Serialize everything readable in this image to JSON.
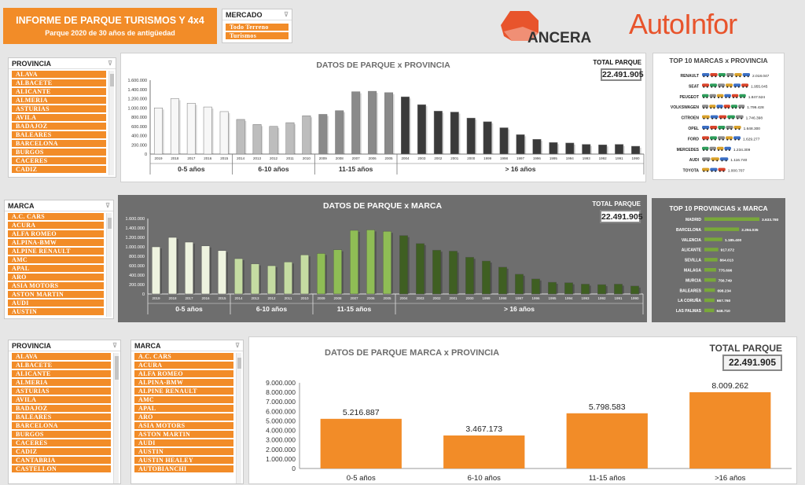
{
  "header": {
    "title": "INFORME DE PARQUE TURISMOS Y  4x4",
    "subtitle": "Parque 2020 de 30 años de antigüedad",
    "mercado_label": "MERCADO",
    "mercado_items": [
      "Todo Terreno",
      "Turismos"
    ],
    "logo_ancera": "ANCERA",
    "logo_auto": "AutoInfor"
  },
  "slicers": {
    "provincia_label": "PROVINCIA",
    "marca_label": "MARCA",
    "provincias": [
      "ALAVA",
      "ALBACETE",
      "ALICANTE",
      "ALMERIA",
      "ASTURIAS",
      "AVILA",
      "BADAJOZ",
      "BALEARES",
      "BARCELONA",
      "BURGOS",
      "CACERES",
      "CADIZ",
      "CANTABRIA",
      "CASTELLON"
    ],
    "marcas": [
      "A.C. CARS",
      "ACURA",
      "ALFA ROMEO",
      "ALPINA-BMW",
      "ALPINE RENAULT",
      "AMC",
      "APAL",
      "ARO",
      "ASIA MOTORS",
      "ASTON MARTIN",
      "AUDI",
      "AUSTIN",
      "AUSTIN HEALEY",
      "AUTOBIANCHI"
    ]
  },
  "panel1": {
    "title": "DATOS DE  PARQUE x PROVINCIA",
    "total_label": "TOTAL PARQUE",
    "total_value": "22.491.905"
  },
  "panel2": {
    "title": "DATOS DE  PARQUE x MARCA",
    "total_label": "TOTAL PARQUE",
    "total_value": "22.491.905"
  },
  "panel3": {
    "title": "DATOS DE  PARQUE MARCA x PROVINCIA",
    "total_label": "TOTAL PARQUE",
    "total_value": "22.491.905"
  },
  "top_marcas": {
    "title": "TOP 10 MARCAS x PROVINCIA",
    "names": [
      "RENAULT",
      "SEAT",
      "PEUGEOT",
      "VOLKSWAGEN",
      "CITROEN",
      "OPEL",
      "FORD",
      "MERCEDES",
      "AUDI",
      "TOYOTA"
    ],
    "labels": [
      "2.018.047",
      "1.955.045",
      "1.847.524",
      "1.799.428",
      "1.746.398",
      "1.648.300",
      "1.629.277",
      "1.234.309",
      "1.116.740",
      "1.000.707"
    ]
  },
  "top_provincias": {
    "title": "TOP 10 PROVINCIAS x MARCA",
    "names": [
      "MADRID",
      "BARCELONA",
      "VALENCIA",
      "ALICANTE",
      "SEVILLA",
      "MALAGA",
      "MURCIA",
      "BALEARES",
      "LA CORUÑA",
      "LAS PALMAS"
    ],
    "labels": [
      "3.633.780",
      "2.294.035",
      "1.185.400",
      "917.072",
      "864.013",
      "775.696",
      "756.749",
      "698.234",
      "667.760",
      "648.710"
    ]
  },
  "colors": {
    "orange": "#f28c28",
    "dark_panel": "#6e6e6e",
    "logo_red": "#e8542c"
  },
  "chart_data": [
    {
      "type": "bar",
      "title": "DATOS DE  PARQUE x PROVINCIA",
      "categories": [
        "2019",
        "2018",
        "2017",
        "2016",
        "2015",
        "2014",
        "2013",
        "2012",
        "2011",
        "2010",
        "2009",
        "2008",
        "2007",
        "2006",
        "2005",
        "2004",
        "2003",
        "2002",
        "2001",
        "2000",
        "1999",
        "1998",
        "1997",
        "1996",
        "1995",
        "1994",
        "1993",
        "1992",
        "1991",
        "1990"
      ],
      "groups": [
        "0-5 años",
        "6-10 años",
        "11-15 años",
        "> 16 años"
      ],
      "group_sizes": [
        5,
        5,
        5,
        15
      ],
      "values": [
        1000000,
        1200000,
        1100000,
        1020000,
        920000,
        750000,
        640000,
        600000,
        680000,
        830000,
        860000,
        940000,
        1350000,
        1360000,
        1330000,
        1240000,
        1070000,
        930000,
        910000,
        780000,
        700000,
        570000,
        420000,
        320000,
        250000,
        240000,
        210000,
        200000,
        210000,
        170000
      ],
      "ytick_labels": [
        "0",
        "200.000",
        "400.000",
        "600.000",
        "800.000",
        "1.000.000",
        "1.200.000",
        "1.400.000",
        "1.600.000"
      ],
      "ylim": [
        0,
        1600000
      ]
    },
    {
      "type": "bar",
      "title": "DATOS DE  PARQUE x MARCA",
      "categories": [
        "2019",
        "2018",
        "2017",
        "2016",
        "2015",
        "2014",
        "2013",
        "2012",
        "2011",
        "2010",
        "2009",
        "2008",
        "2007",
        "2006",
        "2005",
        "2004",
        "2003",
        "2002",
        "2001",
        "2000",
        "1999",
        "1998",
        "1997",
        "1996",
        "1995",
        "1994",
        "1993",
        "1992",
        "1991",
        "1990"
      ],
      "groups": [
        "0-5 años",
        "6-10 años",
        "11-15 años",
        "> 16 años"
      ],
      "group_sizes": [
        5,
        5,
        5,
        15
      ],
      "values": [
        1000000,
        1200000,
        1100000,
        1020000,
        920000,
        750000,
        640000,
        600000,
        680000,
        830000,
        860000,
        940000,
        1350000,
        1360000,
        1330000,
        1240000,
        1070000,
        930000,
        910000,
        780000,
        700000,
        570000,
        420000,
        320000,
        250000,
        240000,
        210000,
        200000,
        210000,
        170000
      ],
      "ytick_labels": [
        "0",
        "200.000",
        "400.000",
        "600.000",
        "800.000",
        "1.000.000",
        "1.200.000",
        "1.400.000",
        "1.600.000"
      ],
      "ylim": [
        0,
        1600000
      ]
    },
    {
      "type": "bar",
      "title": "DATOS DE  PARQUE MARCA x PROVINCIA",
      "categories": [
        "0-5 años",
        "6-10 años",
        "11-15 años",
        ">16 años"
      ],
      "values": [
        5216887,
        3467173,
        5798583,
        8009262
      ],
      "data_labels": [
        "5.216.887",
        "3.467.173",
        "5.798.583",
        "8.009.262"
      ],
      "ytick_labels": [
        "0",
        "1.000.000",
        "2.000.000",
        "3.000.000",
        "4.000.000",
        "5.000.000",
        "6.000.000",
        "7.000.000",
        "8.000.000",
        "9.000.000"
      ],
      "ylim": [
        0,
        9000000
      ]
    },
    {
      "type": "bar",
      "title": "TOP 10 MARCAS x PROVINCIA",
      "categories": [
        "RENAULT",
        "SEAT",
        "PEUGEOT",
        "VOLKSWAGEN",
        "CITROEN",
        "OPEL",
        "FORD",
        "MERCEDES",
        "AUDI",
        "TOYOTA"
      ],
      "values": [
        2018047,
        1955045,
        1847524,
        1799428,
        1746398,
        1648300,
        1629277,
        1234309,
        1116740,
        1000707
      ]
    },
    {
      "type": "bar",
      "title": "TOP 10 PROVINCIAS x MARCA",
      "categories": [
        "MADRID",
        "BARCELONA",
        "VALENCIA",
        "ALICANTE",
        "SEVILLA",
        "MALAGA",
        "MURCIA",
        "BALEARES",
        "LA CORUÑA",
        "LAS PALMAS"
      ],
      "values": [
        3633780,
        2294035,
        1185400,
        917072,
        864013,
        775696,
        756749,
        698234,
        667760,
        648710
      ]
    }
  ]
}
